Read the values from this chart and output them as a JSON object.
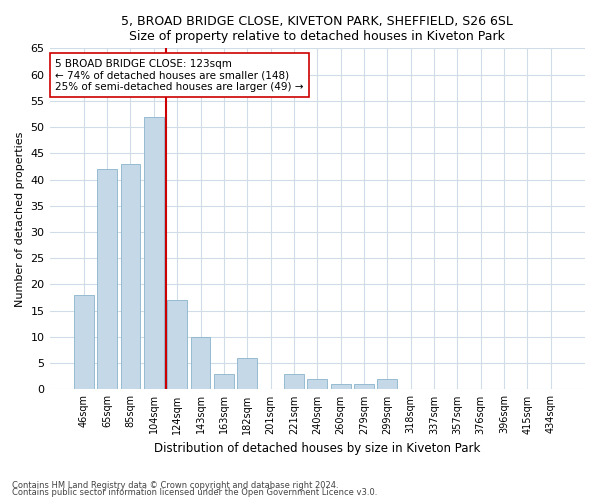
{
  "title1": "5, BROAD BRIDGE CLOSE, KIVETON PARK, SHEFFIELD, S26 6SL",
  "title2": "Size of property relative to detached houses in Kiveton Park",
  "xlabel": "Distribution of detached houses by size in Kiveton Park",
  "ylabel": "Number of detached properties",
  "categories": [
    "46sqm",
    "65sqm",
    "85sqm",
    "104sqm",
    "124sqm",
    "143sqm",
    "163sqm",
    "182sqm",
    "201sqm",
    "221sqm",
    "240sqm",
    "260sqm",
    "279sqm",
    "299sqm",
    "318sqm",
    "337sqm",
    "357sqm",
    "376sqm",
    "396sqm",
    "415sqm",
    "434sqm"
  ],
  "values": [
    18,
    42,
    43,
    52,
    17,
    10,
    3,
    6,
    0,
    3,
    2,
    1,
    1,
    2,
    0,
    0,
    0,
    0,
    0,
    0,
    0
  ],
  "bar_color": "#c5d8e8",
  "bar_edge_color": "#8ab4cc",
  "subject_line_color": "#cc0000",
  "annotation_text": "5 BROAD BRIDGE CLOSE: 123sqm\n← 74% of detached houses are smaller (148)\n25% of semi-detached houses are larger (49) →",
  "annotation_box_color": "#ffffff",
  "annotation_box_edge_color": "#cc0000",
  "ylim": [
    0,
    65
  ],
  "yticks": [
    0,
    5,
    10,
    15,
    20,
    25,
    30,
    35,
    40,
    45,
    50,
    55,
    60,
    65
  ],
  "footer1": "Contains HM Land Registry data © Crown copyright and database right 2024.",
  "footer2": "Contains public sector information licensed under the Open Government Licence v3.0.",
  "bg_color": "#ffffff",
  "plot_bg_color": "#ffffff",
  "grid_color": "#d0dce8"
}
